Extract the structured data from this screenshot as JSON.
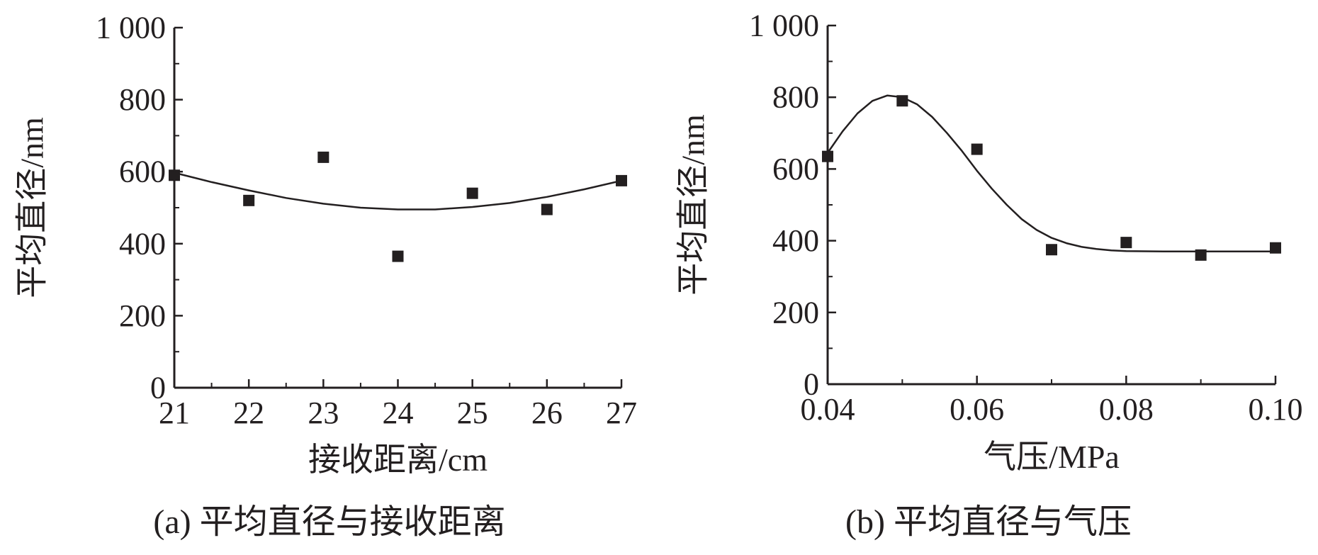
{
  "colors": {
    "ink": "#231f20",
    "background": "#ffffff"
  },
  "chart_data": [
    {
      "type": "scatter",
      "caption": "(a) 平均直径与接收距离",
      "xlabel": "接收距离/cm",
      "ylabel": "平均直径/nm",
      "xlim": [
        21,
        27
      ],
      "ylim": [
        0,
        1000
      ],
      "xticks": [
        21,
        22,
        23,
        24,
        25,
        26,
        27
      ],
      "xtick_labels": [
        "21",
        "22",
        "23",
        "24",
        "25",
        "26",
        "27"
      ],
      "yticks": [
        0,
        200,
        400,
        600,
        800,
        1000
      ],
      "ytick_labels": [
        "0",
        "200",
        "400",
        "600",
        "800",
        "1 000"
      ],
      "grid": false,
      "points": {
        "x": [
          21,
          22,
          23,
          24,
          25,
          26,
          27
        ],
        "y": [
          590,
          520,
          640,
          365,
          540,
          495,
          575
        ]
      },
      "fit_curve": {
        "x": [
          21,
          21.5,
          22,
          22.5,
          23,
          23.5,
          24,
          24.5,
          25,
          25.5,
          26,
          26.5,
          27
        ],
        "y": [
          597,
          571,
          548,
          527,
          511,
          500,
          495,
          495,
          502,
          513,
          530,
          551,
          575
        ]
      }
    },
    {
      "type": "scatter",
      "caption": "(b) 平均直径与气压",
      "xlabel": "气压/MPa",
      "ylabel": "平均直径/nm",
      "xlim": [
        0.04,
        0.1
      ],
      "ylim": [
        0,
        1000
      ],
      "xticks": [
        0.04,
        0.06,
        0.08,
        0.1
      ],
      "xtick_labels": [
        "0.04",
        "0.06",
        "0.08",
        "0.10"
      ],
      "yticks": [
        0,
        200,
        400,
        600,
        800,
        1000
      ],
      "ytick_labels": [
        "0",
        "200",
        "400",
        "600",
        "800",
        "1 000"
      ],
      "grid": false,
      "points": {
        "x": [
          0.04,
          0.05,
          0.06,
          0.07,
          0.08,
          0.09,
          0.1
        ],
        "y": [
          635,
          790,
          655,
          375,
          395,
          360,
          380
        ]
      },
      "fit_curve": {
        "x": [
          0.04,
          0.042,
          0.044,
          0.046,
          0.048,
          0.05,
          0.052,
          0.054,
          0.056,
          0.058,
          0.06,
          0.062,
          0.064,
          0.066,
          0.068,
          0.07,
          0.072,
          0.074,
          0.076,
          0.078,
          0.08,
          0.085,
          0.09,
          0.095,
          0.1
        ],
        "y": [
          645,
          705,
          755,
          790,
          805,
          800,
          780,
          745,
          700,
          650,
          595,
          545,
          500,
          460,
          430,
          408,
          393,
          383,
          377,
          373,
          371,
          370,
          370,
          370,
          370
        ]
      }
    }
  ]
}
